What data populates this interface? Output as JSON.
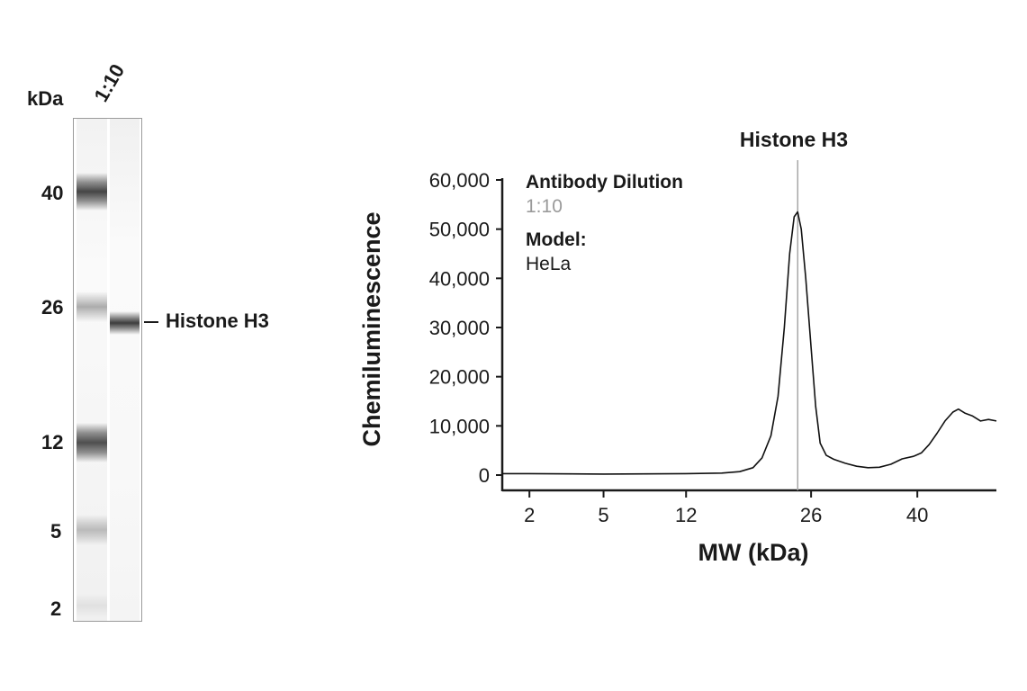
{
  "blot": {
    "unit_label": "kDa",
    "lane_label": "1:10",
    "ladder_labels": [
      "40",
      "26",
      "12",
      "5",
      "2"
    ],
    "band_label": "Histone H3"
  },
  "chart_data": {
    "type": "line",
    "title": "Histone H3",
    "xlabel": "MW (kDa)",
    "ylabel": "Chemiluminescence",
    "x_ticks": [
      "2",
      "5",
      "12",
      "26",
      "40"
    ],
    "y_ticks": [
      "60,000",
      "50,000",
      "40,000",
      "30,000",
      "20,000",
      "10,000",
      "0"
    ],
    "ylim": [
      0,
      60000
    ],
    "marker": {
      "label": "Histone H3",
      "x_kda": 24.5
    },
    "legend": {
      "title": "Antibody Dilution",
      "dilution": "1:10",
      "model_label": "Model:",
      "model_value": "HeLa",
      "placement": "top-left"
    },
    "series": [
      {
        "values_note": "",
        "points": [
          [
            1.5,
            300
          ],
          [
            2,
            300
          ],
          [
            5,
            200
          ],
          [
            12,
            300
          ],
          [
            16,
            400
          ],
          [
            18,
            700
          ],
          [
            19.5,
            1500
          ],
          [
            20.5,
            3500
          ],
          [
            21.5,
            8000
          ],
          [
            22.3,
            16000
          ],
          [
            23,
            30000
          ],
          [
            23.6,
            45000
          ],
          [
            24.1,
            52500
          ],
          [
            24.5,
            53500
          ],
          [
            24.9,
            50000
          ],
          [
            25.4,
            40000
          ],
          [
            26,
            26000
          ],
          [
            26.6,
            14000
          ],
          [
            27.2,
            6500
          ],
          [
            28,
            4000
          ],
          [
            29,
            3200
          ],
          [
            30.5,
            2400
          ],
          [
            32,
            1800
          ],
          [
            33.5,
            1500
          ],
          [
            35,
            1600
          ],
          [
            36.5,
            2200
          ],
          [
            38,
            3300
          ],
          [
            39.5,
            3800
          ],
          [
            40.5,
            4500
          ],
          [
            41.5,
            6200
          ],
          [
            42.5,
            8500
          ],
          [
            43.5,
            11000
          ],
          [
            44.5,
            12800
          ],
          [
            45.2,
            13400
          ],
          [
            46,
            12600
          ],
          [
            47,
            12000
          ],
          [
            48,
            11000
          ],
          [
            49,
            11300
          ],
          [
            50,
            11000
          ]
        ]
      }
    ],
    "colors": {
      "line": "#111111",
      "marker": "#a8a8a8",
      "dilution_text": "#9a9a9a"
    }
  }
}
